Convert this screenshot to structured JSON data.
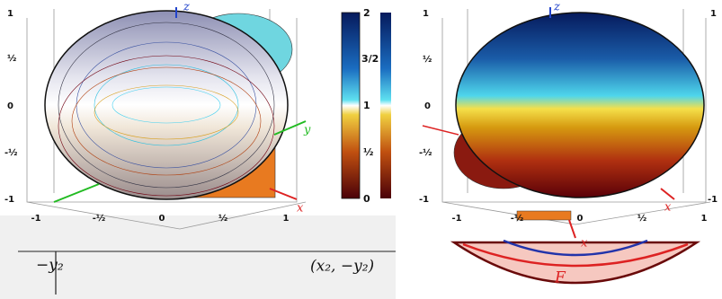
{
  "left_panel": {
    "y_ticks": [
      "1",
      "½",
      "0",
      "-½",
      "-1"
    ],
    "x_ticks": [
      "-1",
      "-½",
      "0",
      "½",
      "1"
    ],
    "axis_labels": {
      "z": "z",
      "y": "y",
      "x": "x"
    }
  },
  "colorbar": {
    "ticks": [
      "2",
      "3/2",
      "1",
      "½",
      "0"
    ]
  },
  "right_panel": {
    "y_ticks": [
      "1",
      "½",
      "0",
      "-½",
      "-1"
    ],
    "x_ticks": [
      "-1",
      "-½",
      "0",
      "½",
      "1"
    ],
    "right_ticks": [
      "1",
      "-1"
    ],
    "axis_labels": {
      "z": "z",
      "x": "x",
      "x_lower": "x"
    }
  },
  "background_figure": {
    "left_label": "−y₂",
    "point_label": "(x₂, −y₂)",
    "region_label": "F"
  }
}
